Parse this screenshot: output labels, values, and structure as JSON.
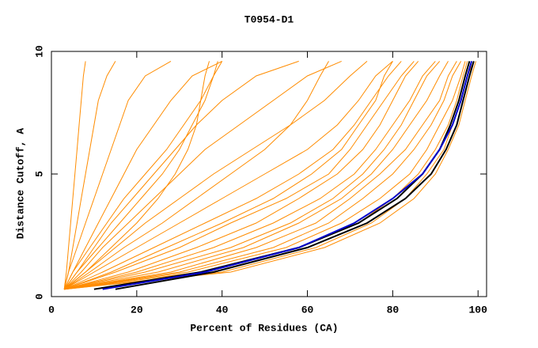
{
  "chart_data": {
    "type": "line",
    "title": "T0954-D1",
    "x_label": "Percent of Residues (CA)",
    "y_label": "Distance Cutoff, A",
    "xlim": [
      0,
      102
    ],
    "ylim": [
      0,
      10
    ],
    "xticks": [
      0,
      20,
      40,
      60,
      80,
      100
    ],
    "yticks": [
      0,
      5,
      10
    ],
    "series": [
      {
        "color": "#ff8c00",
        "x": [
          3,
          40,
          62,
          75,
          83,
          88,
          92,
          94,
          96,
          97.5,
          99
        ],
        "values": [
          0.3,
          1,
          2,
          3,
          4,
          5,
          6,
          7,
          8,
          9,
          9.6
        ]
      },
      {
        "color": "#ff8c00",
        "x": [
          3,
          30,
          52,
          65,
          73,
          80,
          85,
          89,
          92,
          94,
          96
        ],
        "values": [
          0.3,
          1,
          2,
          3,
          4,
          5,
          6,
          7,
          8,
          9,
          9.6
        ]
      },
      {
        "color": "#ff8c00",
        "x": [
          3,
          25,
          45,
          58,
          68,
          75,
          80,
          84,
          88,
          91,
          93
        ],
        "values": [
          0.3,
          1,
          2,
          3,
          4,
          5,
          6,
          7,
          8,
          9,
          9.6
        ]
      },
      {
        "color": "#ff8c00",
        "x": [
          3,
          20,
          38,
          52,
          63,
          71,
          76,
          80,
          84,
          87,
          90
        ],
        "values": [
          0.3,
          1,
          2,
          3,
          4,
          5,
          6,
          7,
          8,
          9,
          9.6
        ]
      },
      {
        "color": "#ff8c00",
        "x": [
          3,
          15,
          30,
          42,
          55,
          65,
          70,
          74,
          78,
          82,
          85
        ],
        "values": [
          0.3,
          1,
          2,
          3,
          4,
          5,
          6,
          7,
          8,
          9,
          9.6
        ]
      },
      {
        "color": "#ff8c00",
        "x": [
          3,
          12,
          24,
          36,
          48,
          58,
          66,
          71,
          75,
          79,
          82
        ],
        "values": [
          0.3,
          1,
          2,
          3,
          4,
          5,
          6,
          7,
          8,
          9,
          9.6
        ]
      },
      {
        "color": "#ff8c00",
        "x": [
          3,
          10,
          20,
          30,
          40,
          50,
          60,
          67,
          72,
          76,
          80
        ],
        "values": [
          0.3,
          1,
          2,
          3,
          4,
          5,
          6,
          7,
          8,
          9,
          9.6
        ]
      },
      {
        "color": "#ff8c00",
        "x": [
          3,
          8,
          15,
          22,
          30,
          38,
          47,
          56,
          64,
          70,
          74
        ],
        "values": [
          0.3,
          1,
          2,
          3,
          4,
          5,
          6,
          7,
          8,
          9,
          9.6
        ]
      },
      {
        "color": "#ff8c00",
        "x": [
          3,
          7,
          12,
          18,
          24,
          30,
          36,
          44,
          52,
          60,
          68
        ],
        "values": [
          0.3,
          1,
          2,
          3,
          4,
          5,
          6,
          7,
          8,
          9,
          9.6
        ]
      },
      {
        "color": "#ff8c00",
        "x": [
          3,
          6,
          10,
          14,
          19,
          24,
          29,
          34,
          40,
          48,
          58
        ],
        "values": [
          0.3,
          1,
          2,
          3,
          4,
          5,
          6,
          7,
          8,
          9,
          9.6
        ]
      },
      {
        "color": "#ff8c00",
        "x": [
          3,
          5,
          8,
          11,
          14,
          17,
          20,
          24,
          28,
          33,
          40
        ],
        "values": [
          0.3,
          1,
          2,
          3,
          4,
          5,
          6,
          7,
          8,
          9,
          9.6
        ]
      },
      {
        "color": "#ff8c00",
        "x": [
          3,
          4,
          6,
          8,
          10,
          12,
          14,
          16,
          18,
          22,
          28
        ],
        "values": [
          0.3,
          1,
          2,
          3,
          4,
          5,
          6,
          7,
          8,
          9,
          9.6
        ]
      },
      {
        "color": "#ff8c00",
        "x": [
          3,
          4,
          5,
          6,
          7,
          8,
          9,
          10,
          11,
          13,
          15
        ],
        "values": [
          0.3,
          1,
          2,
          3,
          4,
          5,
          6,
          7,
          8,
          9,
          9.6
        ]
      },
      {
        "color": "#ff8c00",
        "x": [
          3,
          3.5,
          4,
          4.5,
          5,
          5.5,
          6,
          6.5,
          7,
          7.5,
          8
        ],
        "values": [
          0.3,
          1,
          2,
          3,
          4,
          5,
          6,
          7,
          8,
          9,
          9.6
        ]
      },
      {
        "color": "#ff8c00",
        "x": [
          3,
          35,
          58,
          72,
          80,
          86,
          90,
          93,
          95,
          96.5,
          97.5
        ],
        "values": [
          0.3,
          1,
          2,
          3,
          4,
          5,
          6,
          7,
          8,
          9,
          9.6
        ]
      },
      {
        "color": "#ff8c00",
        "x": [
          3,
          28,
          48,
          62,
          70,
          77,
          83,
          87,
          91,
          93,
          95
        ],
        "values": [
          0.3,
          1,
          2,
          3,
          4,
          5,
          6,
          7,
          8,
          9,
          9.6
        ]
      },
      {
        "color": "#ff8c00",
        "x": [
          3,
          22,
          42,
          56,
          66,
          73,
          78,
          82,
          85,
          88,
          91
        ],
        "values": [
          0.3,
          1,
          2,
          3,
          4,
          5,
          6,
          7,
          8,
          9,
          9.6
        ]
      },
      {
        "color": "#ff8c00",
        "x": [
          3,
          18,
          34,
          48,
          58,
          67,
          73,
          77,
          80,
          83,
          86
        ],
        "values": [
          0.3,
          1,
          2,
          3,
          4,
          5,
          6,
          7,
          8,
          9,
          9.6
        ]
      },
      {
        "color": "#ff8c00",
        "x": [
          3,
          14,
          27,
          40,
          52,
          61,
          68,
          72,
          76,
          78,
          80
        ],
        "values": [
          0.3,
          1,
          2,
          3,
          4,
          5,
          6,
          7,
          8,
          9,
          9.6
        ]
      },
      {
        "color": "#ff8c00",
        "x": [
          3,
          9,
          17,
          26,
          34,
          42,
          50,
          56,
          60,
          63,
          65
        ],
        "values": [
          0.3,
          1,
          2,
          3,
          4,
          5,
          6,
          7,
          8,
          9,
          9.6
        ]
      },
      {
        "color": "#ff8c00",
        "x": [
          3,
          6,
          11,
          16,
          21,
          26,
          30,
          33,
          36,
          38,
          40
        ],
        "values": [
          0.3,
          1,
          2,
          3,
          4,
          5,
          6,
          7,
          8,
          9,
          9.6
        ]
      },
      {
        "color": "#ff8c00",
        "x": [
          3,
          5,
          9,
          13,
          17,
          22,
          27,
          31,
          35,
          38,
          39
        ],
        "values": [
          0.3,
          1,
          2,
          3,
          4,
          5,
          6,
          7,
          8,
          9,
          9.6
        ]
      },
      {
        "color": "#ff8c00",
        "x": [
          3,
          8,
          14,
          20,
          25,
          29,
          32,
          34,
          35,
          36,
          37
        ],
        "values": [
          0.3,
          1,
          2,
          3,
          4,
          5,
          6,
          7,
          8,
          9,
          9.6
        ]
      },
      {
        "color": "#ff8c00",
        "x": [
          3,
          42,
          64,
          77,
          85,
          90,
          93,
          95.5,
          97,
          98.5,
          99.5
        ],
        "values": [
          0.3,
          1,
          2,
          3,
          4,
          5,
          6,
          7,
          8,
          9,
          9.6
        ]
      },
      {
        "color": "#ff8c00",
        "x": [
          3,
          32,
          55,
          68,
          77,
          84,
          88,
          91,
          94,
          96,
          97
        ],
        "values": [
          0.3,
          1,
          2,
          3,
          4,
          5,
          6,
          7,
          8,
          9,
          9.6
        ]
      },
      {
        "color": "#000000",
        "x": [
          10,
          35,
          58,
          72,
          81,
          87,
          91,
          93.5,
          95.5,
          97,
          98
        ],
        "values": [
          0.3,
          1,
          2,
          3,
          4,
          5,
          6,
          7,
          8,
          9,
          9.6
        ]
      },
      {
        "color": "#000000",
        "x": [
          15,
          38,
          60,
          74,
          83,
          89,
          92.5,
          95,
          96.5,
          98,
          99
        ],
        "values": [
          0.3,
          1,
          2,
          3,
          4,
          5,
          6,
          7,
          8,
          9,
          9.6
        ]
      },
      {
        "color": "#0000cc",
        "x": [
          12,
          36,
          58,
          71,
          80,
          87,
          91,
          94,
          96,
          97.5,
          98.5
        ],
        "values": [
          0.3,
          1,
          2,
          3,
          4,
          5,
          6,
          7,
          8,
          9,
          9.6
        ]
      }
    ]
  }
}
